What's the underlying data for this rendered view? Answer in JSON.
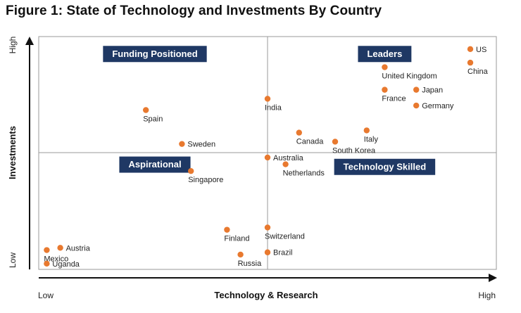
{
  "title": "Figure 1: State of Technology and Investments By Country",
  "chart_data": {
    "type": "scatter",
    "xlabel": "Technology & Research",
    "ylabel": "Investments",
    "x_low": "Low",
    "x_high": "High",
    "y_low": "Low",
    "y_high": "High",
    "xlim": [
      0,
      100
    ],
    "ylim": [
      0,
      100
    ],
    "marker_color": "#e8792f",
    "quadrant_color": "#1f3864",
    "quadrants": [
      {
        "label": "Funding Positioned",
        "x": 25,
        "y": 94
      },
      {
        "label": "Leaders",
        "x": 76,
        "y": 94
      },
      {
        "label": "Aspirational",
        "x": 25,
        "y": 45
      },
      {
        "label": "Technology Skilled",
        "x": 76,
        "y": 44
      }
    ],
    "points": [
      {
        "name": "US",
        "x": 95,
        "y": 96,
        "side": "right"
      },
      {
        "name": "China",
        "x": 95,
        "y": 90,
        "side": "below"
      },
      {
        "name": "United Kingdom",
        "x": 76,
        "y": 88,
        "side": "below"
      },
      {
        "name": "France",
        "x": 76,
        "y": 78,
        "side": "below"
      },
      {
        "name": "Japan",
        "x": 83,
        "y": 78,
        "side": "right"
      },
      {
        "name": "Germany",
        "x": 83,
        "y": 71,
        "side": "right"
      },
      {
        "name": "India",
        "x": 50,
        "y": 74,
        "side": "below"
      },
      {
        "name": "Spain",
        "x": 23,
        "y": 69,
        "side": "below"
      },
      {
        "name": "Canada",
        "x": 57,
        "y": 59,
        "side": "below"
      },
      {
        "name": "Italy",
        "x": 72,
        "y": 60,
        "side": "below"
      },
      {
        "name": "South Korea",
        "x": 65,
        "y": 55,
        "side": "below"
      },
      {
        "name": "Sweden",
        "x": 31,
        "y": 54,
        "side": "right"
      },
      {
        "name": "Australia",
        "x": 50,
        "y": 48,
        "side": "right"
      },
      {
        "name": "Netherlands",
        "x": 54,
        "y": 45,
        "side": "below"
      },
      {
        "name": "Singapore",
        "x": 33,
        "y": 42,
        "side": "below"
      },
      {
        "name": "Finland",
        "x": 41,
        "y": 16,
        "side": "below"
      },
      {
        "name": "Switzerland",
        "x": 50,
        "y": 17,
        "side": "below"
      },
      {
        "name": "Brazil",
        "x": 50,
        "y": 6,
        "side": "right"
      },
      {
        "name": "Russia",
        "x": 44,
        "y": 5,
        "side": "below"
      },
      {
        "name": "Austria",
        "x": 4,
        "y": 8,
        "side": "right"
      },
      {
        "name": "Mexico",
        "x": 1,
        "y": 7,
        "side": "below"
      },
      {
        "name": "Uganda",
        "x": 1,
        "y": 1,
        "side": "right"
      }
    ]
  }
}
